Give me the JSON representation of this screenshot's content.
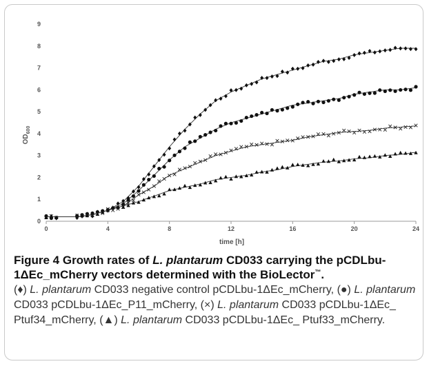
{
  "figure": {
    "title_parts": {
      "p1": "Figure 4 Growth rates of ",
      "organism": "L. plantarum",
      "p2": " CD033 carrying the pCDLbu-1ΔEc_mCherry vectors determined with the BioLector",
      "tm": "™",
      "p3": "."
    },
    "legend_parts": [
      {
        "marker": "(♦)",
        "organism": "L. plantarum",
        "text": " CD033 negative control pCDLbu-1ΔEc_mCherry,"
      },
      {
        "marker": "(●)",
        "organism": "L. plantarum",
        "text": " CD033 pCDLbu-1ΔEc_P11_mCherry,"
      },
      {
        "marker": "(×)",
        "organism": "L. plantarum",
        "text": " CD033 pCDLbu-1ΔEc_ Ptuf34_mCherry,"
      },
      {
        "marker": "(▲)",
        "organism": "L. plantarum",
        "text": " CD033 pCDLbu-1ΔEc_ Ptuf33_mCherry."
      }
    ]
  },
  "chart_data": {
    "type": "scatter",
    "xlabel": "time [h]",
    "ylabel": "OD",
    "ylabel_sub": "600",
    "xlim": [
      0,
      24
    ],
    "ylim": [
      0,
      9
    ],
    "xticks": [
      0,
      4,
      8,
      12,
      16,
      20,
      24
    ],
    "yticks": [
      0,
      1,
      2,
      3,
      4,
      5,
      6,
      7,
      8,
      9
    ],
    "grid": false,
    "legend": "none",
    "series": [
      {
        "marker": "diamond",
        "x": [
          0,
          2,
          3,
          4,
          5,
          6,
          7,
          8,
          9,
          10,
          11,
          12,
          13,
          14,
          15,
          16,
          17,
          18,
          19,
          20,
          21,
          22,
          23,
          24
        ],
        "y": [
          0.2,
          0.2,
          0.3,
          0.5,
          0.9,
          1.6,
          2.5,
          3.4,
          4.2,
          4.9,
          5.5,
          5.9,
          6.2,
          6.5,
          6.7,
          6.9,
          7.1,
          7.3,
          7.4,
          7.6,
          7.7,
          7.8,
          7.9,
          7.9
        ]
      },
      {
        "marker": "circle",
        "x": [
          0,
          2,
          3,
          4,
          5,
          6,
          7,
          8,
          9,
          10,
          11,
          12,
          13,
          14,
          15,
          16,
          17,
          18,
          19,
          20,
          21,
          22,
          23,
          24
        ],
        "y": [
          0.2,
          0.2,
          0.3,
          0.5,
          0.8,
          1.4,
          2.1,
          2.8,
          3.4,
          3.8,
          4.2,
          4.5,
          4.7,
          4.9,
          5.1,
          5.3,
          5.4,
          5.5,
          5.6,
          5.8,
          5.9,
          6.0,
          6.0,
          6.1
        ]
      },
      {
        "marker": "cross",
        "x": [
          0,
          2,
          3,
          4,
          5,
          6,
          7,
          8,
          9,
          10,
          11,
          12,
          13,
          14,
          15,
          16,
          17,
          18,
          19,
          20,
          21,
          22,
          23,
          24
        ],
        "y": [
          0.2,
          0.2,
          0.3,
          0.5,
          0.7,
          1.2,
          1.6,
          2.1,
          2.4,
          2.7,
          3.0,
          3.2,
          3.4,
          3.5,
          3.6,
          3.7,
          3.85,
          3.95,
          4.05,
          4.1,
          4.15,
          4.25,
          4.3,
          4.35
        ]
      },
      {
        "marker": "triangle",
        "x": [
          0,
          2,
          3,
          4,
          5,
          6,
          7,
          8,
          9,
          10,
          11,
          12,
          13,
          14,
          15,
          16,
          17,
          18,
          19,
          20,
          21,
          22,
          23,
          24
        ],
        "y": [
          0.2,
          0.2,
          0.3,
          0.5,
          0.7,
          0.9,
          1.15,
          1.4,
          1.55,
          1.7,
          1.9,
          2.0,
          2.1,
          2.25,
          2.35,
          2.5,
          2.6,
          2.7,
          2.75,
          2.85,
          2.9,
          3.0,
          3.05,
          3.15
        ]
      }
    ]
  }
}
